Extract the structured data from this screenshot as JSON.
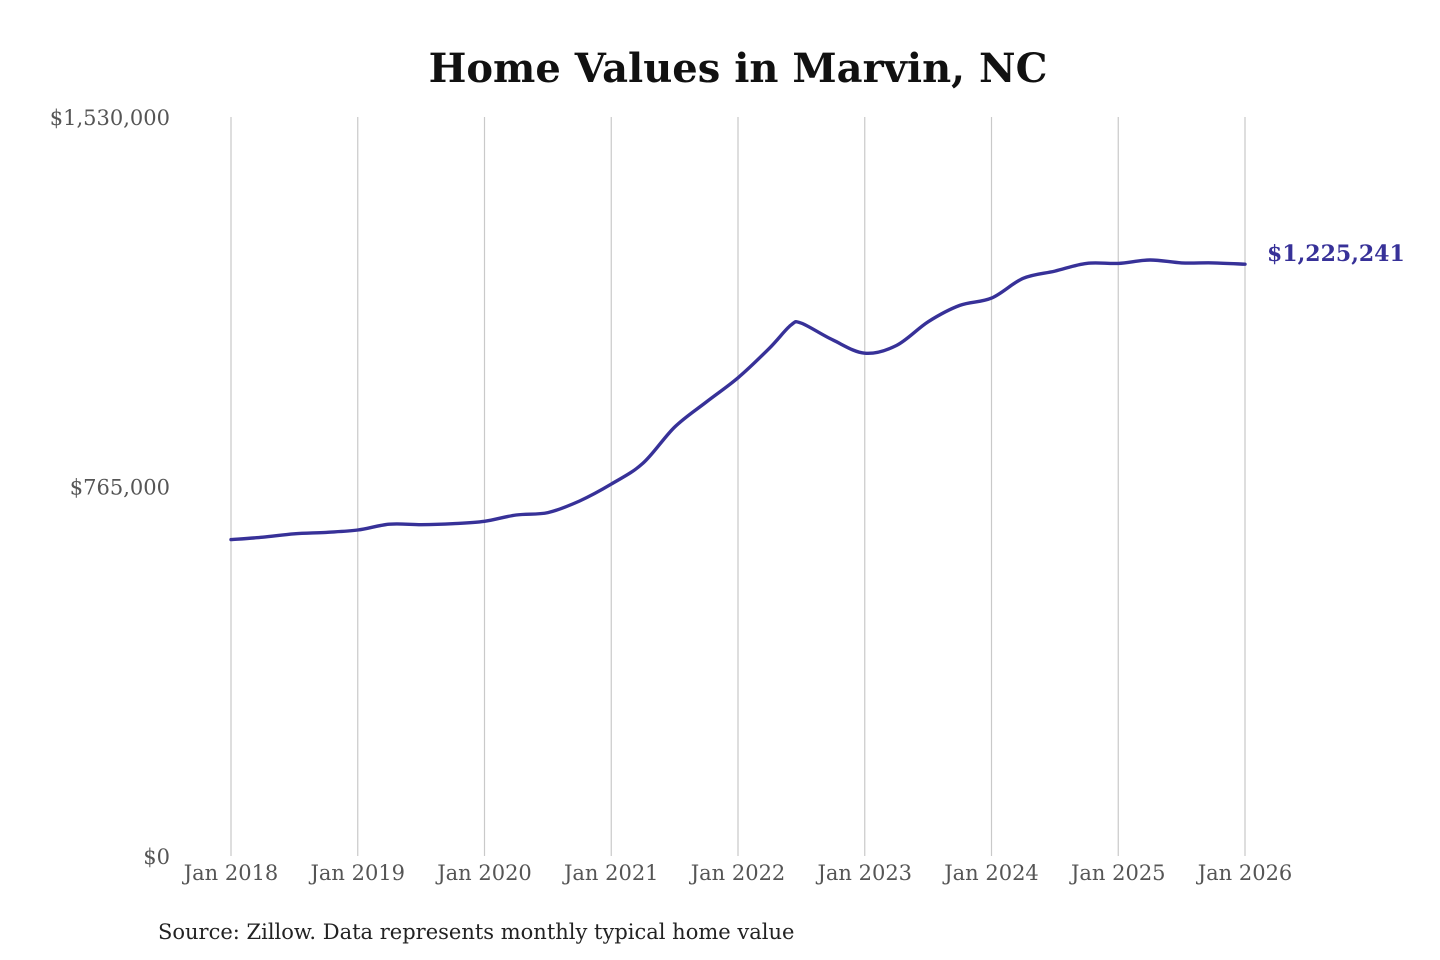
{
  "chart_data": {
    "type": "line",
    "title": "Home Values in Marvin, NC",
    "xlabel": "",
    "ylabel": "",
    "source": "Source: Zillow. Data represents monthly typical home value",
    "ylim": [
      0,
      1530000
    ],
    "xlim": [
      "2018-01",
      "2026-01"
    ],
    "y_ticks": [
      "$1,530,000",
      "$765,000",
      "$0"
    ],
    "y_tick_values": [
      1530000,
      765000,
      0
    ],
    "x_ticks": [
      "Jan 2018",
      "Jan 2019",
      "Jan 2020",
      "Jan 2021",
      "Jan 2022",
      "Jan 2023",
      "Jan 2024",
      "Jan 2025",
      "Jan 2026"
    ],
    "x_tick_dates": [
      "2018-01",
      "2019-01",
      "2020-01",
      "2021-01",
      "2022-01",
      "2023-01",
      "2024-01",
      "2025-01",
      "2026-01"
    ],
    "grid": "vertical",
    "end_label": "$1,225,241",
    "colors": {
      "line": "#373198",
      "end_label": "#373198",
      "grid": "#c9c9c9"
    },
    "series": [
      {
        "dates": [
          "2018-01",
          "2018-04",
          "2018-07",
          "2018-10",
          "2019-01",
          "2019-04",
          "2019-07",
          "2019-10",
          "2020-01",
          "2020-04",
          "2020-07",
          "2020-10",
          "2021-01",
          "2021-04",
          "2021-07",
          "2021-10",
          "2022-01",
          "2022-04",
          "2022-06",
          "2022-07",
          "2022-10",
          "2023-01",
          "2023-04",
          "2023-07",
          "2023-10",
          "2024-01",
          "2024-04",
          "2024-07",
          "2024-10",
          "2025-01",
          "2025-04",
          "2025-07",
          "2025-10",
          "2026-01"
        ],
        "values": [
          655000,
          660000,
          667000,
          670000,
          675000,
          687000,
          686000,
          688000,
          693000,
          706000,
          711000,
          735000,
          770000,
          813000,
          888000,
          940000,
          990000,
          1052000,
          1099000,
          1103000,
          1068000,
          1041000,
          1057000,
          1106000,
          1140000,
          1155000,
          1196000,
          1211000,
          1227000,
          1227000,
          1234000,
          1228000,
          1228000,
          1225241
        ]
      }
    ]
  }
}
